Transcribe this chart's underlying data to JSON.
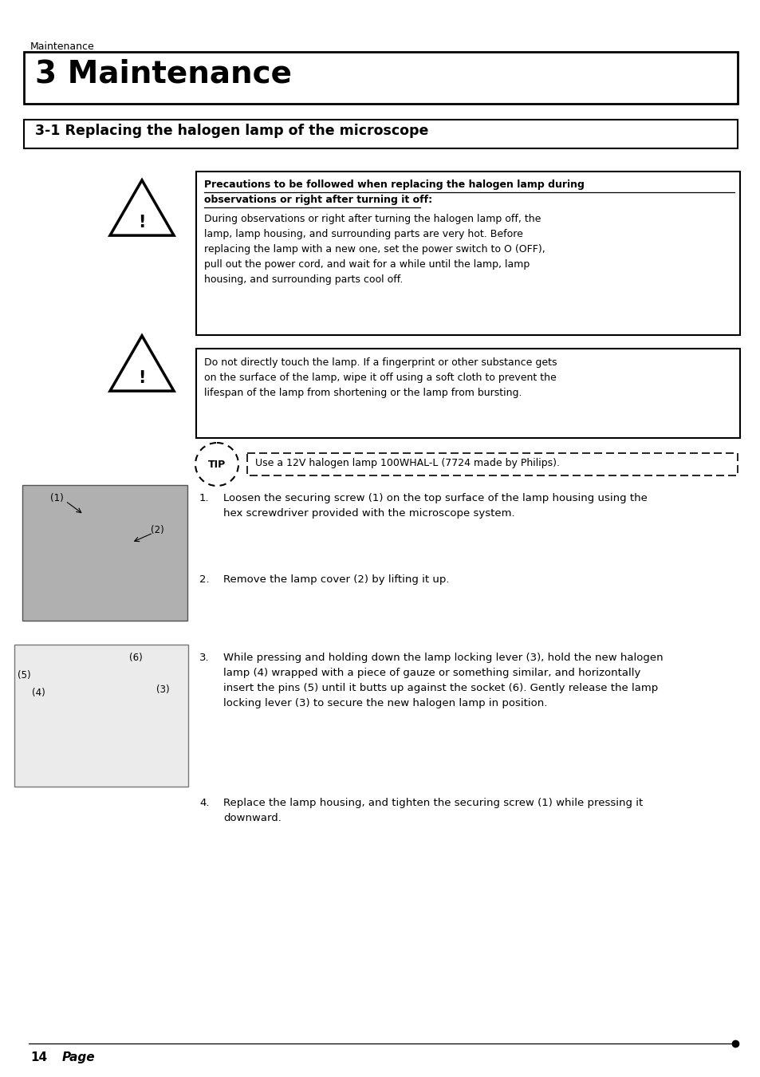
{
  "bg_color": "#ffffff",
  "text_color": "#000000",
  "header_text": "Maintenance",
  "chapter_title": "3 Maintenance",
  "section_title": "3-1 Replacing the halogen lamp of the microscope",
  "warning1_title_line1": "Precautions to be followed when replacing the halogen lamp during",
  "warning1_title_line2": "observations or right after turning it off:",
  "warning1_body_lines": [
    "During observations or right after turning the halogen lamp off, the",
    "lamp, lamp housing, and surrounding parts are very hot. Before",
    "replacing the lamp with a new one, set the power switch to O (OFF),",
    "pull out the power cord, and wait for a while until the lamp, lamp",
    "housing, and surrounding parts cool off."
  ],
  "warning2_body_lines": [
    "Do not directly touch the lamp. If a fingerprint or other substance gets",
    "on the surface of the lamp, wipe it off using a soft cloth to prevent the",
    "lifespan of the lamp from shortening or the lamp from bursting."
  ],
  "tip_text": "Use a 12V halogen lamp 100WHAL-L (7724 made by Philips).",
  "step1_lines": [
    "Loosen the securing screw (1) on the top surface of the lamp housing using the",
    "hex screwdriver provided with the microscope system."
  ],
  "step2": "Remove the lamp cover (2) by lifting it up.",
  "step3_lines": [
    "While pressing and holding down the lamp locking lever (3), hold the new halogen",
    "lamp (4) wrapped with a piece of gauze or something similar, and horizontally",
    "insert the pins (5) until it butts up against the socket (6). Gently release the lamp",
    "locking lever (3) to secure the new halogen lamp in position."
  ],
  "step4_lines": [
    "Replace the lamp housing, and tighten the securing screw (1) while pressing it",
    "downward."
  ],
  "footer_page": "14",
  "footer_label": "Page"
}
